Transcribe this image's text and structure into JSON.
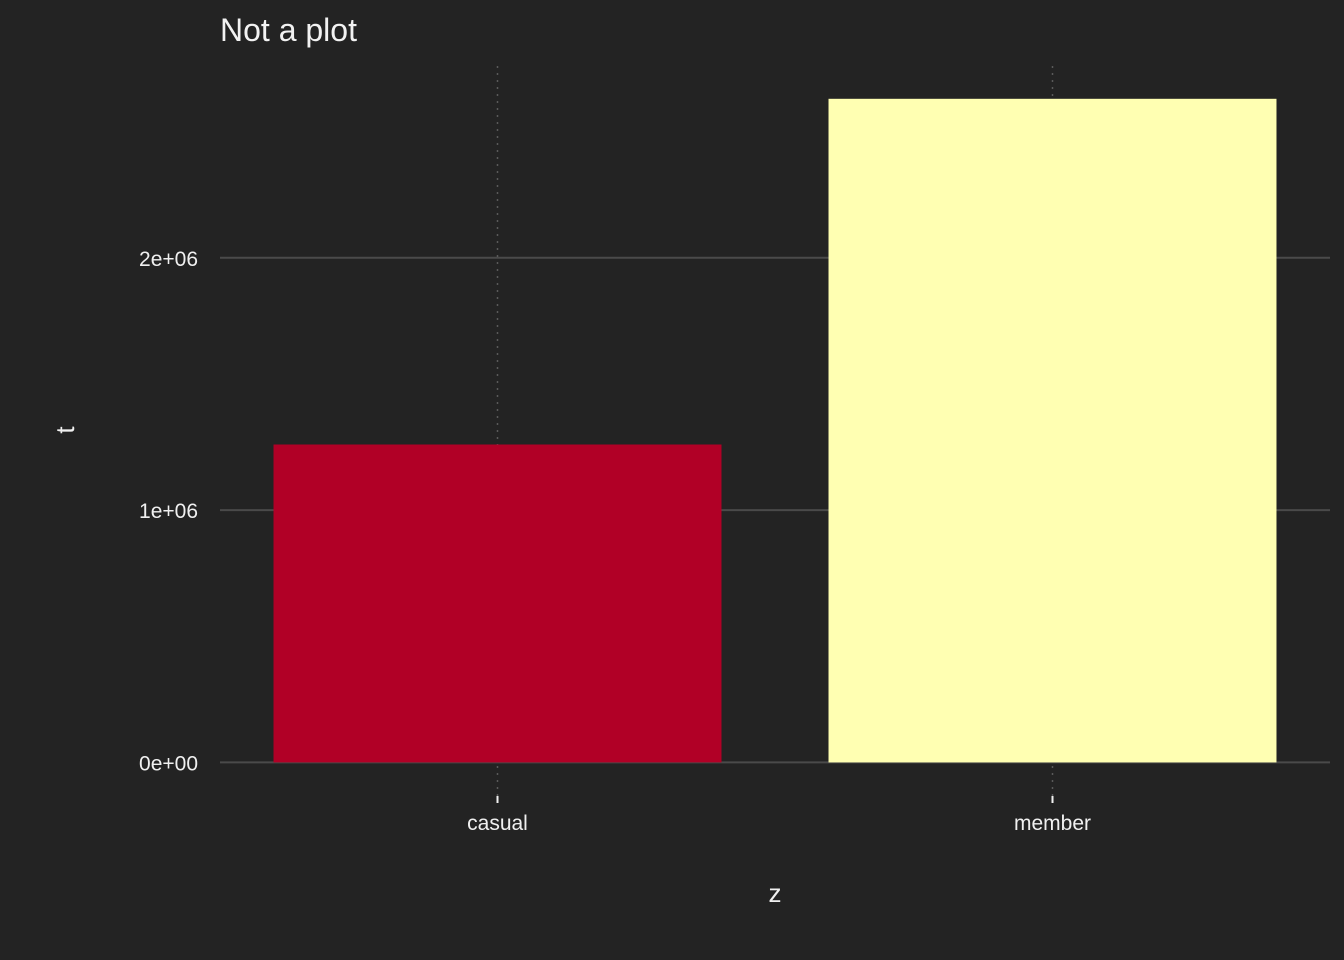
{
  "chart_data": {
    "type": "bar",
    "title": "Not a plot",
    "xlabel": "z",
    "ylabel": "t",
    "categories": [
      "casual",
      "member"
    ],
    "values": [
      1260000,
      2630000
    ],
    "bar_colors": [
      "#B10026",
      "#FFFFB2"
    ],
    "ylim": [
      -30000,
      2760000
    ],
    "y_ticks": [
      0,
      1000000,
      2000000
    ],
    "y_tick_labels": [
      "0e+00",
      "1e+06",
      "2e+06"
    ],
    "grid": true,
    "legend": "none"
  },
  "colors": {
    "background": "#232323",
    "grid_major": "#4a4a4a",
    "grid_minor": "#5a5a5a",
    "text": "#f0f0f0"
  }
}
